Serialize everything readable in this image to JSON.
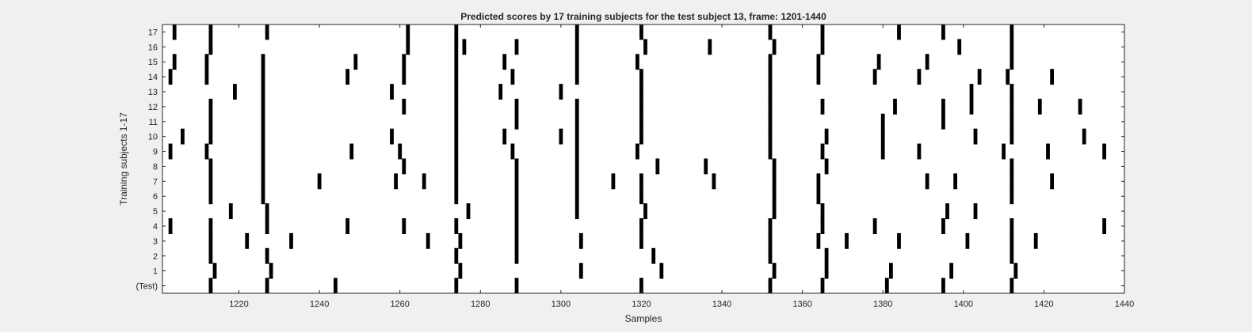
{
  "chart_data": {
    "type": "raster",
    "title": "Predicted scores by 17 training subjects for the test subject 13, frame: 1201-1440",
    "xlabel": "Samples",
    "ylabel": "Training subjects 1-17",
    "xlim": [
      1201,
      1440
    ],
    "xticks": [
      1220,
      1240,
      1260,
      1280,
      1300,
      1320,
      1340,
      1360,
      1380,
      1400,
      1420,
      1440
    ],
    "ytick_labels": [
      "(Test)",
      "1",
      "2",
      "3",
      "4",
      "5",
      "6",
      "7",
      "8",
      "9",
      "10",
      "11",
      "12",
      "13",
      "14",
      "15",
      "16",
      "17"
    ],
    "bar_color": "#000000",
    "grid": false,
    "rows": [
      {
        "label": "(Test)",
        "x": [
          1213,
          1227,
          1244,
          1274,
          1289,
          1320,
          1352,
          1365,
          1381,
          1395,
          1412
        ]
      },
      {
        "label": "1",
        "x": [
          1214,
          1228,
          1275,
          1305,
          1325,
          1353,
          1366,
          1382,
          1397,
          1413
        ]
      },
      {
        "label": "2",
        "x": [
          1213,
          1227,
          1274,
          1289,
          1323,
          1352,
          1366,
          1412
        ]
      },
      {
        "label": "3",
        "x": [
          1213,
          1222,
          1233,
          1267,
          1275,
          1289,
          1305,
          1320,
          1352,
          1364,
          1371,
          1384,
          1401,
          1412,
          1418
        ]
      },
      {
        "label": "4",
        "x": [
          1203,
          1213,
          1227,
          1247,
          1261,
          1274,
          1289,
          1320,
          1352,
          1365,
          1378,
          1395,
          1412,
          1435
        ]
      },
      {
        "label": "5",
        "x": [
          1218,
          1227,
          1277,
          1289,
          1304,
          1321,
          1353,
          1365,
          1396,
          1403
        ]
      },
      {
        "label": "6",
        "x": [
          1213,
          1226,
          1274,
          1289,
          1304,
          1320,
          1353,
          1364,
          1412
        ]
      },
      {
        "label": "7",
        "x": [
          1213,
          1226,
          1240,
          1259,
          1266,
          1274,
          1289,
          1304,
          1313,
          1320,
          1338,
          1353,
          1364,
          1391,
          1398,
          1412,
          1422
        ]
      },
      {
        "label": "8",
        "x": [
          1213,
          1226,
          1261,
          1274,
          1289,
          1304,
          1324,
          1336,
          1353,
          1366,
          1412
        ]
      },
      {
        "label": "9",
        "x": [
          1203,
          1212,
          1226,
          1248,
          1260,
          1274,
          1288,
          1304,
          1319,
          1352,
          1365,
          1380,
          1389,
          1410,
          1421,
          1435
        ]
      },
      {
        "label": "10",
        "x": [
          1206,
          1213,
          1226,
          1258,
          1274,
          1286,
          1300,
          1304,
          1320,
          1352,
          1366,
          1380,
          1403,
          1412,
          1430
        ]
      },
      {
        "label": "11",
        "x": [
          1213,
          1226,
          1274,
          1289,
          1304,
          1320,
          1352,
          1380,
          1395,
          1412
        ]
      },
      {
        "label": "12",
        "x": [
          1213,
          1226,
          1261,
          1274,
          1289,
          1304,
          1320,
          1352,
          1365,
          1383,
          1395,
          1402,
          1412,
          1419,
          1429
        ]
      },
      {
        "label": "13",
        "x": [
          1219,
          1226,
          1258,
          1274,
          1285,
          1300,
          1320,
          1352,
          1402,
          1412
        ]
      },
      {
        "label": "14",
        "x": [
          1203,
          1212,
          1226,
          1247,
          1261,
          1274,
          1288,
          1304,
          1320,
          1352,
          1364,
          1378,
          1389,
          1404,
          1411,
          1422
        ]
      },
      {
        "label": "15",
        "x": [
          1204,
          1212,
          1226,
          1249,
          1261,
          1274,
          1286,
          1304,
          1319,
          1352,
          1364,
          1379,
          1391,
          1412
        ]
      },
      {
        "label": "16",
        "x": [
          1213,
          1262,
          1274,
          1276,
          1289,
          1304,
          1321,
          1337,
          1353,
          1365,
          1399,
          1412
        ]
      },
      {
        "label": "17",
        "x": [
          1204,
          1213,
          1227,
          1262,
          1274,
          1304,
          1320,
          1352,
          1365,
          1384,
          1395,
          1412
        ]
      }
    ]
  }
}
